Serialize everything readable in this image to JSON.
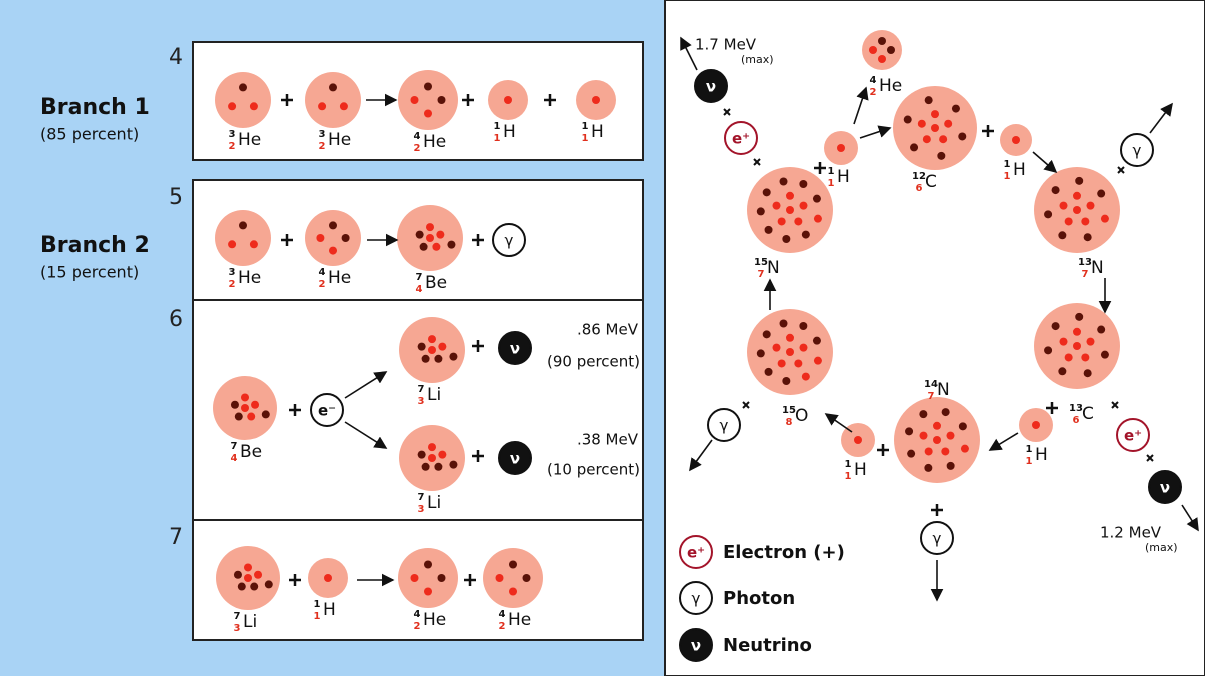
{
  "pp_chain": {
    "step_numbers": [
      4,
      5,
      6,
      7
    ],
    "branches": [
      {
        "name": "Branch 1",
        "share": "(85 percent)"
      },
      {
        "name": "Branch 2",
        "share": "(15 percent)"
      }
    ],
    "nuclides": [
      {
        "mass": 3,
        "z": 2,
        "symbol": "He"
      },
      {
        "mass": 3,
        "z": 2,
        "symbol": "He"
      },
      {
        "mass": 4,
        "z": 2,
        "symbol": "He"
      },
      {
        "mass": 1,
        "z": 1,
        "symbol": "H"
      },
      {
        "mass": 1,
        "z": 1,
        "symbol": "H"
      },
      {
        "mass": 3,
        "z": 2,
        "symbol": "He"
      },
      {
        "mass": 4,
        "z": 2,
        "symbol": "He"
      },
      {
        "mass": 7,
        "z": 4,
        "symbol": "Be"
      },
      {
        "mass": 7,
        "z": 4,
        "symbol": "Be"
      },
      {
        "mass": 7,
        "z": 3,
        "symbol": "Li"
      },
      {
        "mass": 7,
        "z": 3,
        "symbol": "Li"
      },
      {
        "mass": 7,
        "z": 3,
        "symbol": "Li"
      },
      {
        "mass": 1,
        "z": 1,
        "symbol": "H"
      },
      {
        "mass": 4,
        "z": 2,
        "symbol": "He"
      },
      {
        "mass": 4,
        "z": 2,
        "symbol": "He"
      }
    ],
    "particles": [
      "γ",
      "e⁻",
      "ν",
      "ν"
    ],
    "energies": [
      {
        "energy": ".86 MeV",
        "share": "(90 percent)"
      },
      {
        "energy": ".38 MeV",
        "share": "(10 percent)"
      }
    ]
  },
  "cno_cycle": {
    "nuclides": [
      {
        "mass": 12,
        "z": 6,
        "symbol": "C"
      },
      {
        "mass": 1,
        "z": 1,
        "symbol": "H"
      },
      {
        "mass": 4,
        "z": 2,
        "symbol": "He"
      },
      {
        "mass": 1,
        "z": 1,
        "symbol": "H"
      },
      {
        "mass": 13,
        "z": 7,
        "symbol": "N"
      },
      {
        "mass": 13,
        "z": 6,
        "symbol": "C"
      },
      {
        "mass": 1,
        "z": 1,
        "symbol": "H"
      },
      {
        "mass": 14,
        "z": 7,
        "symbol": "N"
      },
      {
        "mass": 1,
        "z": 1,
        "symbol": "H"
      },
      {
        "mass": 15,
        "z": 8,
        "symbol": "O"
      },
      {
        "mass": 15,
        "z": 7,
        "symbol": "N"
      }
    ],
    "particles": [
      "ν",
      "e⁺",
      "γ",
      "e⁺",
      "ν",
      "γ",
      "γ"
    ],
    "energies": [
      {
        "energy": "1.7 MeV",
        "note": "(max)"
      },
      {
        "energy": "1.2 MeV",
        "note": "(max)"
      }
    ]
  },
  "legend": [
    {
      "symbol": "e⁺",
      "label": "Electron (+)"
    },
    {
      "symbol": "γ",
      "label": "Photon"
    },
    {
      "symbol": "ν",
      "label": "Neutrino"
    }
  ]
}
